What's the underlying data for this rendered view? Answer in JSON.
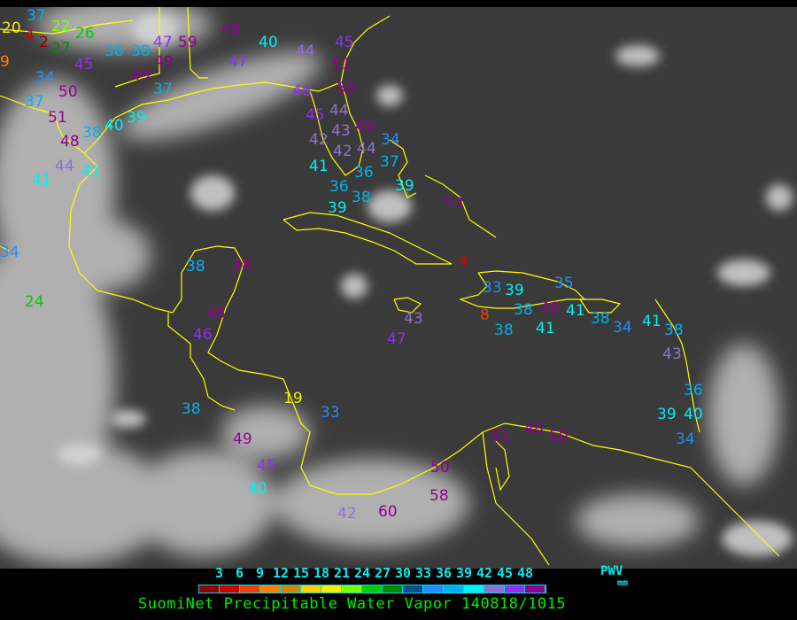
{
  "map": {
    "background_color": "#3a3a3a",
    "coastline_color": "#ffff00",
    "stations": [
      "20",
      "4",
      "2",
      "22",
      "26",
      "27",
      "9",
      "34",
      "37",
      "45",
      "50",
      "51",
      "48",
      "44",
      "41",
      "41",
      "38",
      "40",
      "39",
      "38",
      "38",
      "47",
      "59",
      "49",
      "49",
      "37",
      "48",
      "40",
      "47",
      "44",
      "45",
      "51",
      "50",
      "46",
      "45",
      "44",
      "43",
      "42",
      "42",
      "49",
      "44",
      "36",
      "41",
      "36",
      "38",
      "39",
      "37",
      "34",
      "39",
      "53",
      "4",
      "48",
      "38",
      "48",
      "46",
      "38",
      "34",
      "24",
      "19",
      "33",
      "49",
      "45",
      "40",
      "42",
      "60",
      "58",
      "50",
      "51",
      "48",
      "50",
      "47",
      "43",
      "33",
      "39",
      "38",
      "48",
      "8",
      "38",
      "41",
      "41",
      "35",
      "38",
      "34",
      "41",
      "38",
      "43",
      "36",
      "40",
      "39",
      "34",
      "37"
    ]
  },
  "legend": {
    "ticks": [
      "3",
      "6",
      "9",
      "12",
      "15",
      "18",
      "21",
      "24",
      "27",
      "30",
      "33",
      "36",
      "39",
      "42",
      "45",
      "48"
    ],
    "colors": [
      "#8b0000",
      "#d00000",
      "#f04000",
      "#ff8000",
      "#d08800",
      "#ffd000",
      "#f0f000",
      "#80ff00",
      "#00cc00",
      "#008800",
      "#104e8b",
      "#2090ff",
      "#00b0f0",
      "#00f0f0",
      "#9070d0",
      "#9030f0",
      "#900090"
    ],
    "unit_label": "PWV",
    "unit": "mm"
  },
  "title": "SuomiNet Precipitable Water Vapor 140818/1015"
}
